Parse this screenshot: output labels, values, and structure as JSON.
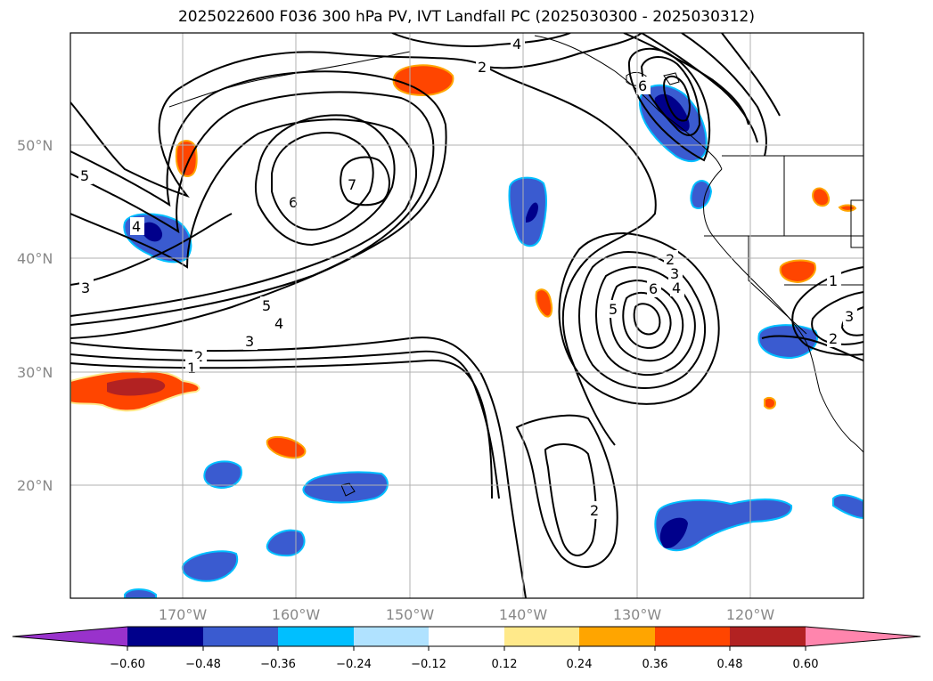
{
  "title": "2025022600 F036 300 hPa PV, IVT Landfall PC (2025030300 - 2025030312)",
  "map": {
    "lat_labels": [
      "50°N",
      "40°N",
      "30°N",
      "20°N"
    ],
    "lon_labels": [
      "170°W",
      "160°W",
      "150°W",
      "140°W",
      "130°W",
      "120°W"
    ],
    "gridlines": true
  },
  "contour_labels": [
    "4",
    "2",
    "6",
    "5",
    "7",
    "6",
    "4",
    "3",
    "5",
    "4",
    "3",
    "2",
    "1",
    "2",
    "3",
    "6",
    "5",
    "4",
    "1",
    "2",
    "3",
    "2"
  ],
  "colorbar": {
    "tick_labels": [
      "−0.60",
      "−0.48",
      "−0.36",
      "−0.24",
      "−0.12",
      "0.12",
      "0.24",
      "0.36",
      "0.48",
      "0.60"
    ],
    "colors": [
      "#9932CC",
      "#00008B",
      "#3A5BD0",
      "#00BFFF",
      "#B0E2FF",
      "#FFFFFF",
      "#FFE98A",
      "#FFA500",
      "#FF4500",
      "#B22222",
      "#FF85AD"
    ]
  }
}
